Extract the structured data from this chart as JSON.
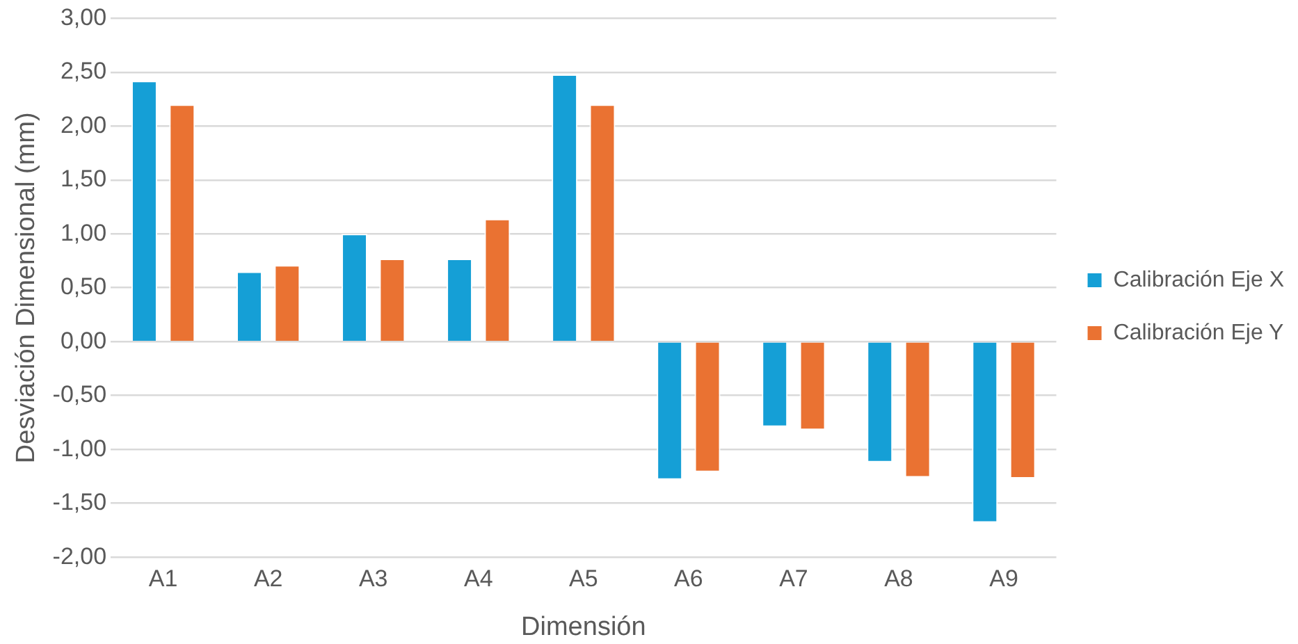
{
  "chart_data": {
    "type": "bar",
    "xlabel": "Dimensión",
    "ylabel": "Desviación Dimensional (mm)",
    "categories": [
      "A1",
      "A2",
      "A3",
      "A4",
      "A5",
      "A6",
      "A7",
      "A8",
      "A9"
    ],
    "series": [
      {
        "name": "Calibración Eje X",
        "color": "#159fd6",
        "values": [
          2.42,
          0.65,
          1.0,
          0.77,
          2.48,
          -1.28,
          -0.79,
          -1.12,
          -1.68
        ]
      },
      {
        "name": "Calibración Eje Y",
        "color": "#ea7232",
        "values": [
          2.2,
          0.71,
          0.77,
          1.14,
          2.2,
          -1.21,
          -0.82,
          -1.26,
          -1.27
        ]
      }
    ],
    "ylim": [
      -2,
      3
    ],
    "yticks": [
      {
        "value": 3,
        "label": "3,00"
      },
      {
        "value": 2.5,
        "label": "2,50"
      },
      {
        "value": 2,
        "label": "2,00"
      },
      {
        "value": 1.5,
        "label": "1,50"
      },
      {
        "value": 1,
        "label": "1,00"
      },
      {
        "value": 0.5,
        "label": "0,50"
      },
      {
        "value": 0,
        "label": "0,00"
      },
      {
        "value": -0.5,
        "label": "-0,50"
      },
      {
        "value": -1,
        "label": "-1,00"
      },
      {
        "value": -1.5,
        "label": "-1,50"
      },
      {
        "value": -2,
        "label": "-2,00"
      }
    ],
    "grid": "y",
    "legend": "right"
  }
}
